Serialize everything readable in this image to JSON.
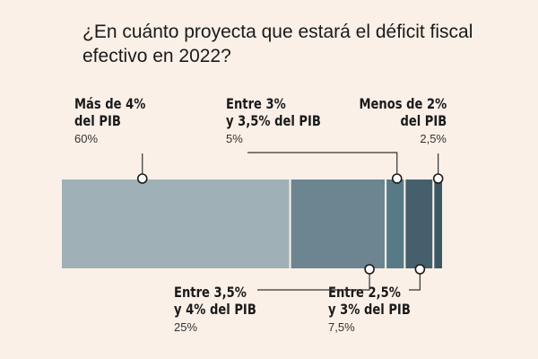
{
  "title": "¿En cuánto proyecta que estará el déficit fiscal efectivo en 2022?",
  "colors": {
    "background": "#fbf0e8",
    "segments": [
      "#9fb0b6",
      "#6c8590",
      "#587a87",
      "#45606c",
      "#3a5764"
    ],
    "leader": "#333333"
  },
  "chart_data": {
    "type": "bar",
    "orientation": "horizontal-stacked",
    "title": "¿En cuánto proyecta que estará el déficit fiscal efectivo en 2022?",
    "unit": "%",
    "categories": [
      "Más de 4% del PIB",
      "Entre 3,5% y 4% del PIB",
      "Entre 3% y 3,5% del PIB",
      "Entre 2,5% y 3% del PIB",
      "Menos de 2% del PIB"
    ],
    "values": [
      60,
      25,
      5,
      7.5,
      2.5
    ],
    "segments": [
      {
        "label_line1": "Más de 4%",
        "label_line2": "del PIB",
        "value": 60,
        "value_label": "60%"
      },
      {
        "label_line1": "Entre 3,5%",
        "label_line2": "y 4% del PIB",
        "value": 25,
        "value_label": "25%"
      },
      {
        "label_line1": "Entre 3%",
        "label_line2": "y 3,5% del PIB",
        "value": 5,
        "value_label": "5%"
      },
      {
        "label_line1": "Entre 2,5%",
        "label_line2": "y 3% del PIB",
        "value": 7.5,
        "value_label": "7,5%"
      },
      {
        "label_line1": "Menos de 2%",
        "label_line2": "del PIB",
        "value": 2.5,
        "value_label": "2,5%"
      }
    ]
  }
}
